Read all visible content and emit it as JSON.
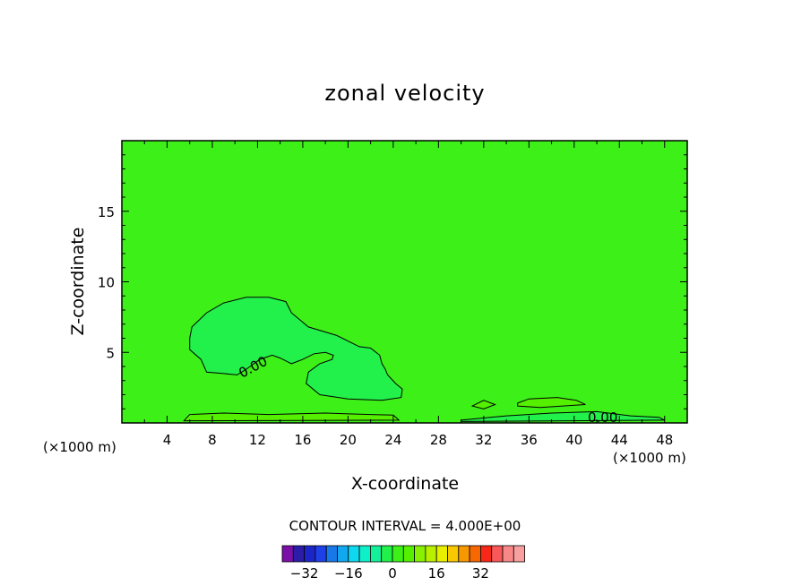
{
  "chart_data": {
    "type": "heatmap",
    "title": "zonal velocity",
    "xlabel": "X-coordinate",
    "ylabel": "Z-coordinate",
    "x_unit": "(×1000 m)",
    "x_unit_right": "(×1000 m)",
    "xlim": [
      0,
      50
    ],
    "ylim": [
      0,
      20
    ],
    "x_ticks": [
      4,
      8,
      12,
      16,
      20,
      24,
      28,
      32,
      36,
      40,
      44,
      48
    ],
    "y_ticks": [
      5,
      10,
      15
    ],
    "grid": false,
    "background_value": 0,
    "contour_interval_text": "CONTOUR INTERVAL = 4.000E+00",
    "contour_labels": [
      "0.00",
      "0.00"
    ],
    "regions": [
      {
        "name": "negative-core",
        "value": -2,
        "color": "#22f04b",
        "points": [
          [
            6.0,
            6.0
          ],
          [
            6.2,
            6.8
          ],
          [
            7.5,
            7.8
          ],
          [
            9.0,
            8.5
          ],
          [
            11.0,
            8.9
          ],
          [
            13.0,
            8.9
          ],
          [
            14.5,
            8.6
          ],
          [
            15.0,
            7.8
          ],
          [
            16.5,
            6.8
          ],
          [
            19.0,
            6.2
          ],
          [
            21.0,
            5.4
          ],
          [
            22.0,
            5.3
          ],
          [
            22.8,
            4.8
          ],
          [
            23.0,
            4.2
          ],
          [
            23.3,
            3.8
          ],
          [
            23.5,
            3.4
          ],
          [
            24.2,
            2.8
          ],
          [
            24.8,
            2.4
          ],
          [
            24.7,
            1.8
          ],
          [
            23.0,
            1.6
          ],
          [
            20.0,
            1.7
          ],
          [
            17.5,
            2.0
          ],
          [
            16.3,
            2.8
          ],
          [
            16.5,
            3.6
          ],
          [
            17.5,
            4.2
          ],
          [
            18.6,
            4.5
          ],
          [
            18.7,
            4.8
          ],
          [
            18.0,
            5.0
          ],
          [
            17.0,
            4.9
          ],
          [
            16.0,
            4.5
          ],
          [
            15.0,
            4.2
          ],
          [
            14.0,
            4.6
          ],
          [
            13.3,
            4.8
          ],
          [
            12.2,
            4.5
          ],
          [
            11.0,
            3.8
          ],
          [
            10.2,
            3.4
          ],
          [
            9.0,
            3.5
          ],
          [
            7.5,
            3.6
          ],
          [
            7.0,
            4.5
          ],
          [
            6.0,
            5.2
          ]
        ]
      },
      {
        "name": "lower-right-band",
        "value": -2,
        "color": "#22f04b",
        "points": [
          [
            30.0,
            0.2
          ],
          [
            34.0,
            0.5
          ],
          [
            38.0,
            0.7
          ],
          [
            42.0,
            0.8
          ],
          [
            45.0,
            0.5
          ],
          [
            47.5,
            0.4
          ],
          [
            48.0,
            0.2
          ],
          [
            30.0,
            0.1
          ]
        ]
      },
      {
        "name": "upper-lower-band",
        "value": 2,
        "color": "#55f000",
        "points": [
          [
            35.0,
            1.4
          ],
          [
            36.0,
            1.7
          ],
          [
            38.5,
            1.8
          ],
          [
            40.2,
            1.6
          ],
          [
            41.0,
            1.3
          ],
          [
            37.0,
            1.1
          ],
          [
            35.0,
            1.2
          ]
        ]
      },
      {
        "name": "bottom-left-band",
        "value": 2,
        "color": "#55f000",
        "points": [
          [
            5.5,
            0.15
          ],
          [
            6.0,
            0.6
          ],
          [
            9.0,
            0.7
          ],
          [
            13.0,
            0.6
          ],
          [
            18.0,
            0.7
          ],
          [
            22.0,
            0.6
          ],
          [
            24.0,
            0.55
          ],
          [
            24.5,
            0.2
          ]
        ]
      },
      {
        "name": "small-cell",
        "value": 2,
        "color": "#55f000",
        "points": [
          [
            31.0,
            1.2
          ],
          [
            32.0,
            1.6
          ],
          [
            33.0,
            1.3
          ],
          [
            32.0,
            1.0
          ]
        ]
      }
    ],
    "colorbar": {
      "colors": [
        "#7b10a8",
        "#2c1ca8",
        "#1c26c8",
        "#1e40e8",
        "#1878e8",
        "#12a8f0",
        "#0ed8f0",
        "#0ef0c8",
        "#14f09a",
        "#22f04b",
        "#3cf018",
        "#55f000",
        "#88f000",
        "#b8f000",
        "#e8f000",
        "#f8c800",
        "#f89800",
        "#f86800",
        "#f82818",
        "#f85858",
        "#f88888",
        "#f8a0a0"
      ],
      "tick_labels": [
        "−32",
        "−16",
        "0",
        "16",
        "32"
      ],
      "tick_values": [
        -32,
        -16,
        0,
        16,
        32
      ]
    }
  }
}
